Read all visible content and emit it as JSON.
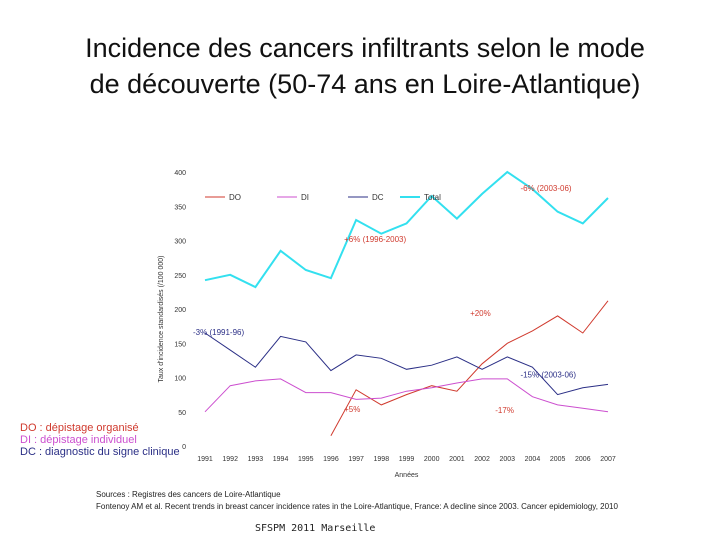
{
  "slide": {
    "title_line1": "Incidence des cancers infiltrants selon le mode",
    "title_line2": "de découverte (50-74 ans en Loire-Atlantique)",
    "source_line1": "Sources : Registres des cancers de Loire-Atlantique",
    "source_line2": "Fontenoy AM et al. Recent trends in breast cancer incidence rates in the Loire-Atlantique, France: A decline since 2003. Cancer epidemiology, 2010",
    "footer": "SFSPM 2011 Marseille",
    "legend_do": "DO : dépistage organisé",
    "legend_di": "DI : dépistage individuel",
    "legend_dc": "DC :  diagnostic du signe clinique"
  },
  "colors": {
    "DO": "#d03a2e",
    "DI": "#cc4fcf",
    "DC": "#2b2f86",
    "Total": "#33e0ef"
  },
  "chart_data": {
    "type": "line",
    "xlabel": "Années",
    "ylabel": "Taux d'incidence standardisés (/100 000)",
    "ylim": [
      0,
      400
    ],
    "yticks": [
      0,
      50,
      100,
      150,
      200,
      250,
      300,
      350,
      400
    ],
    "x": [
      "1991",
      "1992",
      "1993",
      "1994",
      "1995",
      "1996",
      "1997",
      "1998",
      "1999",
      "2000",
      "2001",
      "2002",
      "2003",
      "2004",
      "2005",
      "2006",
      "2007"
    ],
    "series": [
      {
        "name": "DO",
        "values": [
          null,
          null,
          null,
          null,
          null,
          15,
          82,
          60,
          75,
          88,
          80,
          120,
          150,
          168,
          190,
          165,
          212
        ]
      },
      {
        "name": "DI",
        "values": [
          50,
          88,
          95,
          98,
          78,
          78,
          68,
          70,
          80,
          85,
          92,
          98,
          98,
          72,
          60,
          55,
          50
        ]
      },
      {
        "name": "DC",
        "values": [
          165,
          140,
          115,
          160,
          152,
          110,
          133,
          128,
          112,
          118,
          130,
          112,
          130,
          115,
          75,
          85,
          90
        ]
      },
      {
        "name": "Total",
        "values": [
          242,
          250,
          232,
          285,
          257,
          245,
          330,
          310,
          325,
          365,
          332,
          368,
          400,
          375,
          342,
          325,
          362
        ]
      }
    ],
    "legend": [
      "DO",
      "DI",
      "DC",
      "Total"
    ],
    "annotations": [
      {
        "text": "-6% (2003-06)",
        "x": "2004",
        "y": 372,
        "color": "#d03a2e"
      },
      {
        "text": "+6% (1996-2003)",
        "x": "1997",
        "y": 298,
        "color": "#d03a2e"
      },
      {
        "text": "+20%",
        "x": "2002",
        "y": 190,
        "color": "#d03a2e"
      },
      {
        "text": "-3% (1991-96)",
        "x": "1991",
        "y": 162,
        "color": "#2b2f86"
      },
      {
        "text": "-15% (2003-06)",
        "x": "2004",
        "y": 100,
        "color": "#2b2f86"
      },
      {
        "text": "+5%",
        "x": "1997",
        "y": 50,
        "color": "#d03a2e"
      },
      {
        "text": "-17%",
        "x": "2003",
        "y": 48,
        "color": "#d03a2e"
      }
    ]
  }
}
